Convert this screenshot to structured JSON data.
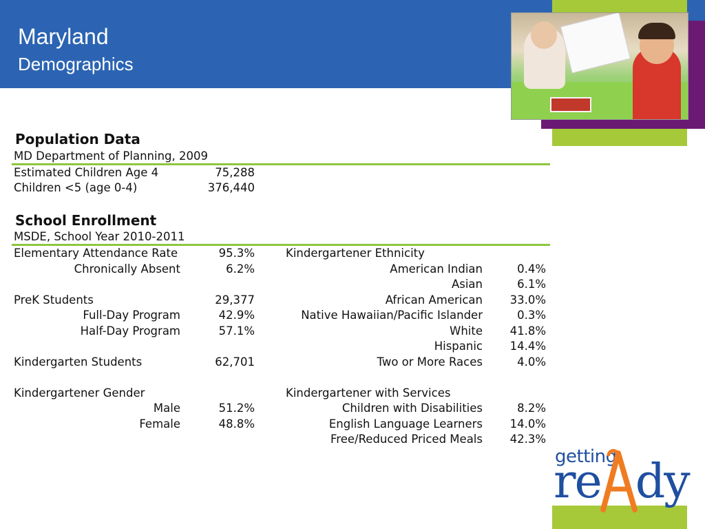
{
  "header": {
    "title": "Maryland",
    "subtitle": "Demographics"
  },
  "population": {
    "title": "Population Data",
    "source": "MD Department of Planning, 2009",
    "rows": [
      {
        "label": "Estimated Children Age 4",
        "value": "75,288"
      },
      {
        "label": "Children <5 (age 0-4)",
        "value": "376,440"
      }
    ]
  },
  "enrollment": {
    "title": "School Enrollment",
    "source": "MSDE, School Year 2010-2011",
    "left": {
      "attendance_label": "Elementary Attendance Rate",
      "attendance_value": "95.3%",
      "absent_label": "Chronically Absent",
      "absent_value": "6.2%",
      "prek_label": "PreK Students",
      "prek_value": "29,377",
      "fullday_label": "Full-Day Program",
      "fullday_value": "42.9%",
      "halfday_label": "Half-Day Program",
      "halfday_value": "57.1%",
      "kinder_label": "Kindergarten Students",
      "kinder_value": "62,701",
      "gender_label": "Kindergartener Gender",
      "male_label": "Male",
      "male_value": "51.2%",
      "female_label": "Female",
      "female_value": "48.8%"
    },
    "ethnicity": {
      "heading": "Kindergartener Ethnicity",
      "rows": [
        {
          "label": "American Indian",
          "value": "0.4%"
        },
        {
          "label": "Asian",
          "value": "6.1%"
        },
        {
          "label": "African American",
          "value": "33.0%"
        },
        {
          "label": "Native Hawaiian/Pacific Islander",
          "value": "0.3%"
        },
        {
          "label": "White",
          "value": "41.8%"
        },
        {
          "label": "Hispanic",
          "value": "14.4%"
        },
        {
          "label": "Two or More Races",
          "value": "4.0%"
        }
      ]
    },
    "services": {
      "heading": "Kindergartener with Services",
      "rows": [
        {
          "label": "Children with Disabilities",
          "value": "8.2%"
        },
        {
          "label": "English Language Learners",
          "value": "14.0%"
        },
        {
          "label": "Free/Reduced Priced Meals",
          "value": "42.3%"
        }
      ]
    }
  },
  "logo": {
    "getting": "getting",
    "ready_prefix": "re",
    "ready_suffix": "dy"
  },
  "colors": {
    "header_blue": "#2c64b3",
    "accent_green": "#a6c93a",
    "accent_purple": "#6b1a73",
    "logo_blue": "#1f4fa0",
    "logo_orange": "#f07c22"
  }
}
